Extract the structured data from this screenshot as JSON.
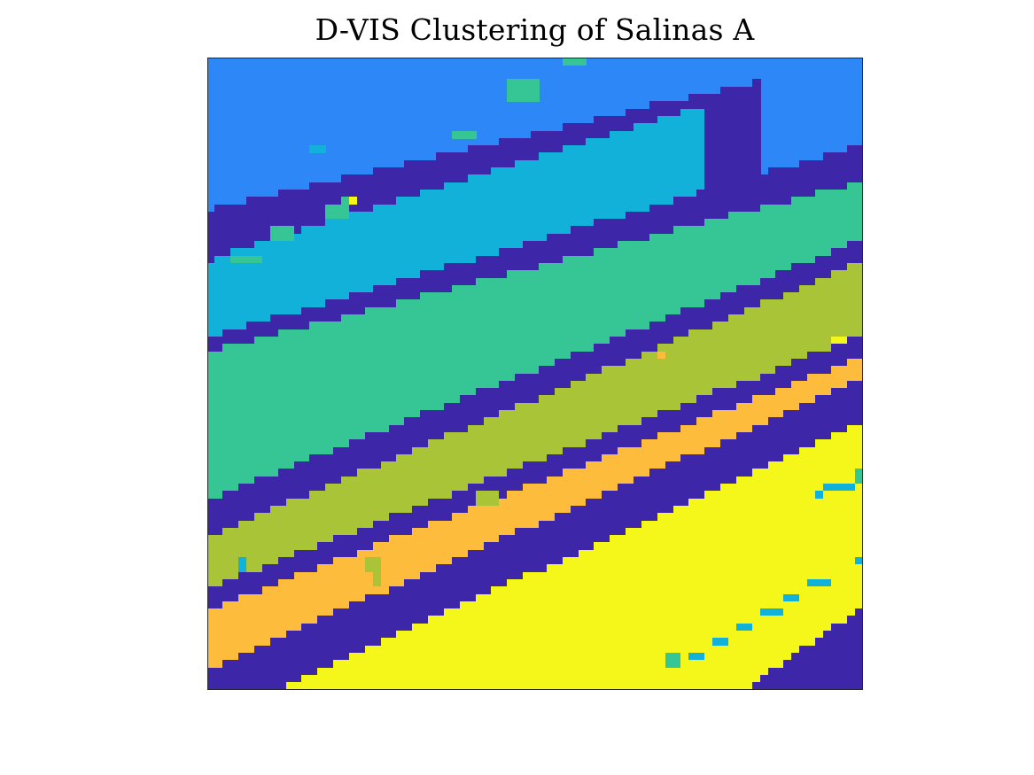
{
  "chart_data": {
    "type": "heatmap",
    "title": "D-VIS Clustering of Salinas A",
    "xlabel": "",
    "ylabel": "",
    "axis_ticks": "none",
    "grid": false,
    "legend": "none",
    "grid_size": [
      83,
      86
    ],
    "cluster_colors": {
      "boundary": "#3D26A8",
      "c1": "#2E87F7",
      "c2": "#12B1D9",
      "c3": "#36C594",
      "c4": "#A9C537",
      "c5": "#FDBC3C",
      "c6": "#F5F619"
    },
    "band_order": [
      "c1",
      "c2",
      "c3",
      "c4",
      "c5",
      "c6"
    ],
    "bands": [
      {
        "cluster": "boundary",
        "left_row": 20.5,
        "right_row": 0,
        "end_col": 70
      },
      {
        "cluster": "c2",
        "left_row": 27.5,
        "right_row": 0,
        "end_col": 63
      },
      {
        "cluster": "boundary",
        "left_row": 38,
        "right_row": 12
      },
      {
        "cluster": "c3",
        "left_row": 40,
        "right_row": 17
      },
      {
        "cluster": "boundary",
        "left_row": 60,
        "right_row": 25
      },
      {
        "cluster": "c4",
        "left_row": 65,
        "right_row": 28
      },
      {
        "cluster": "boundary",
        "left_row": 72,
        "right_row": 38
      },
      {
        "cluster": "c5",
        "left_row": 75,
        "right_row": 41
      },
      {
        "cluster": "boundary",
        "left_row": 83,
        "right_row": 44
      },
      {
        "cluster": "c6",
        "left_row": 90,
        "right_row": 50
      },
      {
        "cluster": "boundary",
        "left_row": 138,
        "right_row": 75
      }
    ],
    "noise_patches": [
      {
        "cluster": "c3",
        "col": 45,
        "row": 0,
        "w": 3,
        "h": 1
      },
      {
        "cluster": "c3",
        "col": 38,
        "row": 3,
        "w": 4,
        "h": 3
      },
      {
        "cluster": "c3",
        "col": 31,
        "row": 10,
        "w": 3,
        "h": 1
      },
      {
        "cluster": "c2",
        "col": 13,
        "row": 12,
        "w": 2,
        "h": 1
      },
      {
        "cluster": "c3",
        "col": 17,
        "row": 19,
        "w": 2,
        "h": 1
      },
      {
        "cluster": "c6",
        "col": 18,
        "row": 19,
        "w": 1,
        "h": 1
      },
      {
        "cluster": "c3",
        "col": 15,
        "row": 20,
        "w": 3,
        "h": 2
      },
      {
        "cluster": "c3",
        "col": 8,
        "row": 23,
        "w": 3,
        "h": 2
      },
      {
        "cluster": "c3",
        "col": 3,
        "row": 27,
        "w": 4,
        "h": 1
      },
      {
        "cluster": "c5",
        "col": 57,
        "row": 40,
        "w": 1,
        "h": 1
      },
      {
        "cluster": "c4",
        "col": 69,
        "row": 43,
        "w": 1,
        "h": 1
      },
      {
        "cluster": "c6",
        "col": 79,
        "row": 38,
        "w": 2,
        "h": 1
      },
      {
        "cluster": "c3",
        "col": 82,
        "row": 56,
        "w": 2,
        "h": 2
      },
      {
        "cluster": "c2",
        "col": 78,
        "row": 58,
        "w": 4,
        "h": 1
      },
      {
        "cluster": "c2",
        "col": 77,
        "row": 59,
        "w": 1,
        "h": 1
      },
      {
        "cluster": "c4",
        "col": 34,
        "row": 59,
        "w": 3,
        "h": 2
      },
      {
        "cluster": "c2",
        "col": 4,
        "row": 68,
        "w": 1,
        "h": 2
      },
      {
        "cluster": "c4",
        "col": 20,
        "row": 68,
        "w": 2,
        "h": 2
      },
      {
        "cluster": "c4",
        "col": 21,
        "row": 70,
        "w": 1,
        "h": 2
      },
      {
        "cluster": "c2",
        "col": 82,
        "row": 68,
        "w": 3,
        "h": 1
      },
      {
        "cluster": "c2",
        "col": 76,
        "row": 71,
        "w": 3,
        "h": 1
      },
      {
        "cluster": "c2",
        "col": 73,
        "row": 73,
        "w": 2,
        "h": 1
      },
      {
        "cluster": "c2",
        "col": 70,
        "row": 75,
        "w": 3,
        "h": 1
      },
      {
        "cluster": "c2",
        "col": 67,
        "row": 77,
        "w": 2,
        "h": 1
      },
      {
        "cluster": "c2",
        "col": 64,
        "row": 79,
        "w": 2,
        "h": 1
      },
      {
        "cluster": "c3",
        "col": 58,
        "row": 81,
        "w": 2,
        "h": 2
      },
      {
        "cluster": "c2",
        "col": 61,
        "row": 81,
        "w": 2,
        "h": 1
      }
    ]
  }
}
